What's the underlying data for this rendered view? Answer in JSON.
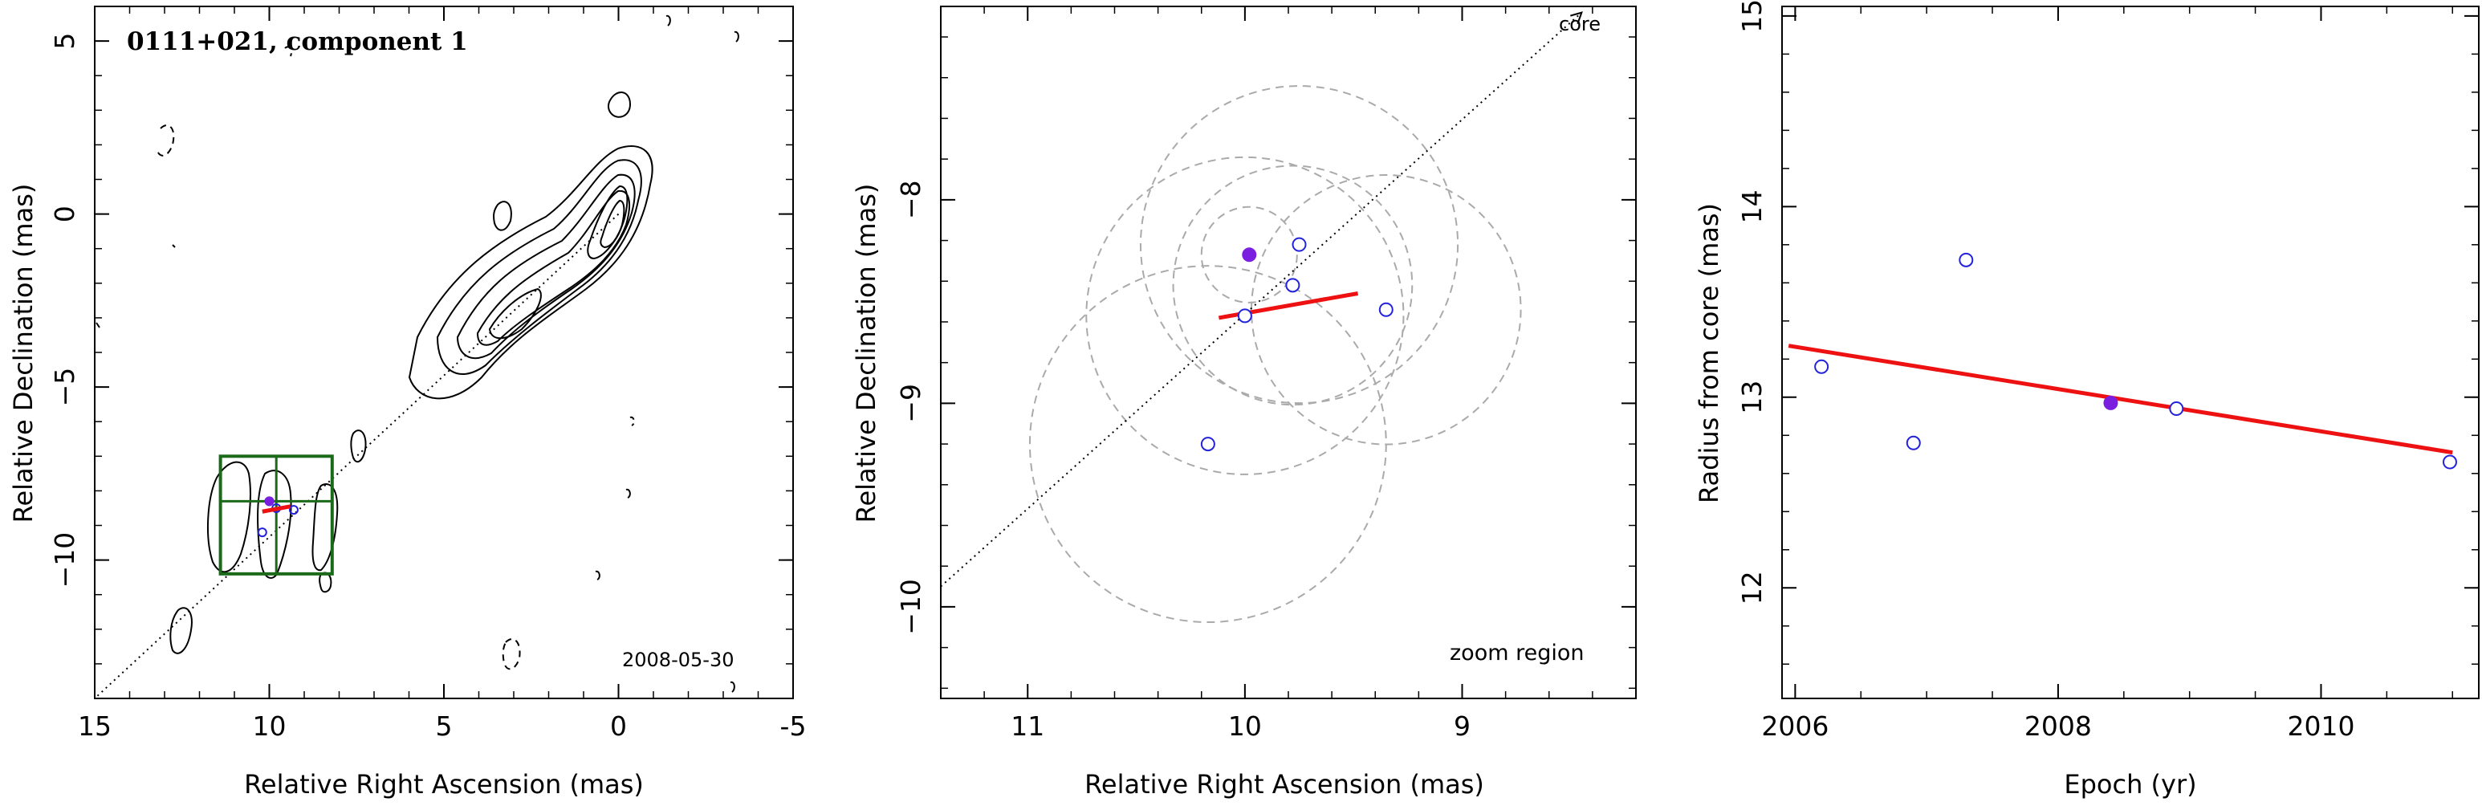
{
  "chart_data": [
    {
      "type": "scatter",
      "panel": "contour-map",
      "title": "0111+021, component 1",
      "annotation": "2008-05-30",
      "xlabel": "Relative Right Ascension (mas)",
      "ylabel": "Relative Declination (mas)",
      "xlim": [
        15,
        -5
      ],
      "ylim": [
        -14,
        6
      ],
      "x_ticks": [
        15,
        10,
        5,
        0,
        -5
      ],
      "y_ticks": [
        5,
        0,
        -5,
        -10
      ],
      "colors": {
        "contour": "#000000",
        "zoom_box": "#1a6a1a",
        "trend": "#ee1111",
        "open_points": "#2222dd",
        "current_point": "#7a1fe0",
        "direction_line": "#000000"
      },
      "direction_line": {
        "from": [
          0,
          0
        ],
        "to": [
          15,
          -14
        ]
      },
      "zoom_box": {
        "x": [
          8.2,
          11.4
        ],
        "y": [
          -10.4,
          -7.0
        ],
        "center": [
          9.8,
          -8.3
        ]
      },
      "trend_line": {
        "from": [
          10.2,
          -8.6
        ],
        "to": [
          9.4,
          -8.45
        ]
      },
      "points": [
        {
          "x": 10.0,
          "y": -8.3
        },
        {
          "x": 9.8,
          "y": -8.5
        },
        {
          "x": 9.3,
          "y": -8.55
        },
        {
          "x": 10.2,
          "y": -9.2
        }
      ],
      "current_point": {
        "x": 10.0,
        "y": -8.3
      }
    },
    {
      "type": "scatter",
      "panel": "zoom",
      "title": "",
      "annotation_top": "core",
      "annotation_bottom": "zoom region",
      "xlabel": "Relative Right Ascension (mas)",
      "ylabel": "Relative Declination (mas)",
      "xlim": [
        11.4,
        8.2
      ],
      "ylim": [
        -10.45,
        -7.05
      ],
      "x_ticks": [
        11,
        10,
        9
      ],
      "y_ticks": [
        -8,
        -9,
        -10
      ],
      "colors": {
        "trend": "#ee1111",
        "open_points": "#2222dd",
        "current_point": "#7a1fe0",
        "uncertainty_circles": "#aaaaaa",
        "direction_line": "#000000"
      },
      "direction_line": {
        "from": [
          11.4,
          -9.9
        ],
        "to": [
          8.45,
          -7.08
        ]
      },
      "trend_line": {
        "from": [
          10.12,
          -8.58
        ],
        "to": [
          9.48,
          -8.46
        ]
      },
      "points": [
        {
          "x": 10.0,
          "y": -8.57,
          "r": 0.73
        },
        {
          "x": 9.78,
          "y": -8.42,
          "r": 0.55
        },
        {
          "x": 9.75,
          "y": -8.22,
          "r": 0.73
        },
        {
          "x": 9.35,
          "y": -8.54,
          "r": 0.62
        },
        {
          "x": 10.17,
          "y": -9.2,
          "r": 0.82
        }
      ],
      "current_point": {
        "x": 9.98,
        "y": -8.27,
        "r": 0.22
      }
    },
    {
      "type": "scatter",
      "panel": "radius-vs-epoch",
      "title": "",
      "xlabel": "Epoch (yr)",
      "ylabel": "Radius from core (mas)",
      "xlim": [
        2005.9,
        2011.2
      ],
      "ylim": [
        11.42,
        15.05
      ],
      "x_ticks": [
        2006,
        2008,
        2010
      ],
      "y_ticks": [
        12,
        13,
        14,
        15
      ],
      "colors": {
        "trend": "#ee1111",
        "open_points": "#2222dd",
        "current_point": "#7a1fe0"
      },
      "trend_line": {
        "from": [
          2005.95,
          13.27
        ],
        "to": [
          2011.0,
          12.71
        ]
      },
      "points": [
        {
          "x": 2006.2,
          "y": 13.16
        },
        {
          "x": 2006.9,
          "y": 12.76
        },
        {
          "x": 2007.3,
          "y": 13.72
        },
        {
          "x": 2008.9,
          "y": 12.94
        },
        {
          "x": 2010.98,
          "y": 12.66
        }
      ],
      "current_point": {
        "x": 2008.4,
        "y": 12.97
      }
    }
  ]
}
